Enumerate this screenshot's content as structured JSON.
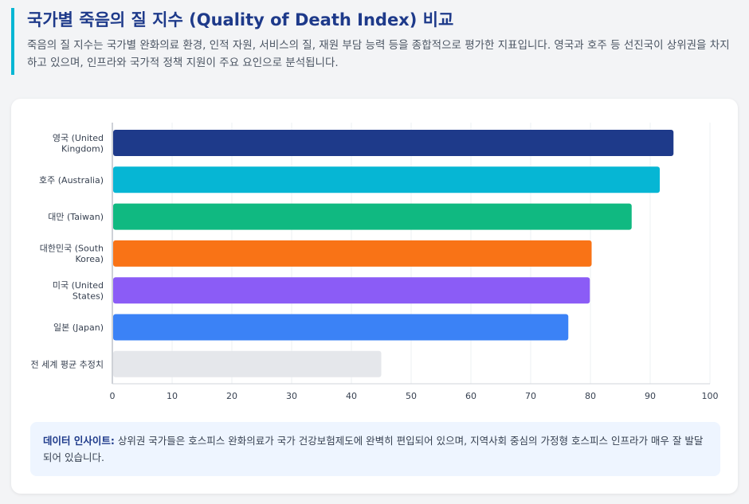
{
  "header": {
    "title": "국가별 죽음의 질 지수 (Quality of Death Index) 비교",
    "description": "죽음의 질 지수는 국가별 완화의료 환경, 인적 자원, 서비스의 질, 재원 부담 능력 등을 종합적으로 평가한 지표입니다. 영국과 호주 등 선진국이 상위권을 차지하고 있으며, 인프라와 국가적 정책 지원이 주요 요인으로 분석됩니다."
  },
  "chart_data": {
    "type": "bar",
    "orientation": "horizontal",
    "categories": [
      [
        "영국 (United",
        "Kingdom)"
      ],
      [
        "호주 (Australia)"
      ],
      [
        "대만 (Taiwan)"
      ],
      [
        "대한민국 (South",
        "Korea)"
      ],
      [
        "미국 (United",
        "States)"
      ],
      [
        "일본 (Japan)"
      ],
      [
        "전 세계 평균 추정치"
      ]
    ],
    "values": [
      93.9,
      91.6,
      86.9,
      80.2,
      79.9,
      76.3,
      45
    ],
    "colors": [
      "#1e3a8a",
      "#06b6d4",
      "#10b981",
      "#f97316",
      "#8b5cf6",
      "#3b82f6",
      "#e5e7eb"
    ],
    "xlim": [
      0,
      100
    ],
    "xticks": [
      "0",
      "10",
      "20",
      "30",
      "40",
      "50",
      "60",
      "70",
      "80",
      "90",
      "100"
    ],
    "grid": true,
    "legend": "none"
  },
  "insight": {
    "label": "데이터 인사이트:",
    "text": " 상위권 국가들은 호스피스 완화의료가 국가 건강보험제도에 완벽히 편입되어 있으며, 지역사회 중심의 가정형 호스피스 인프라가 매우 잘 발달되어 있습니다."
  }
}
